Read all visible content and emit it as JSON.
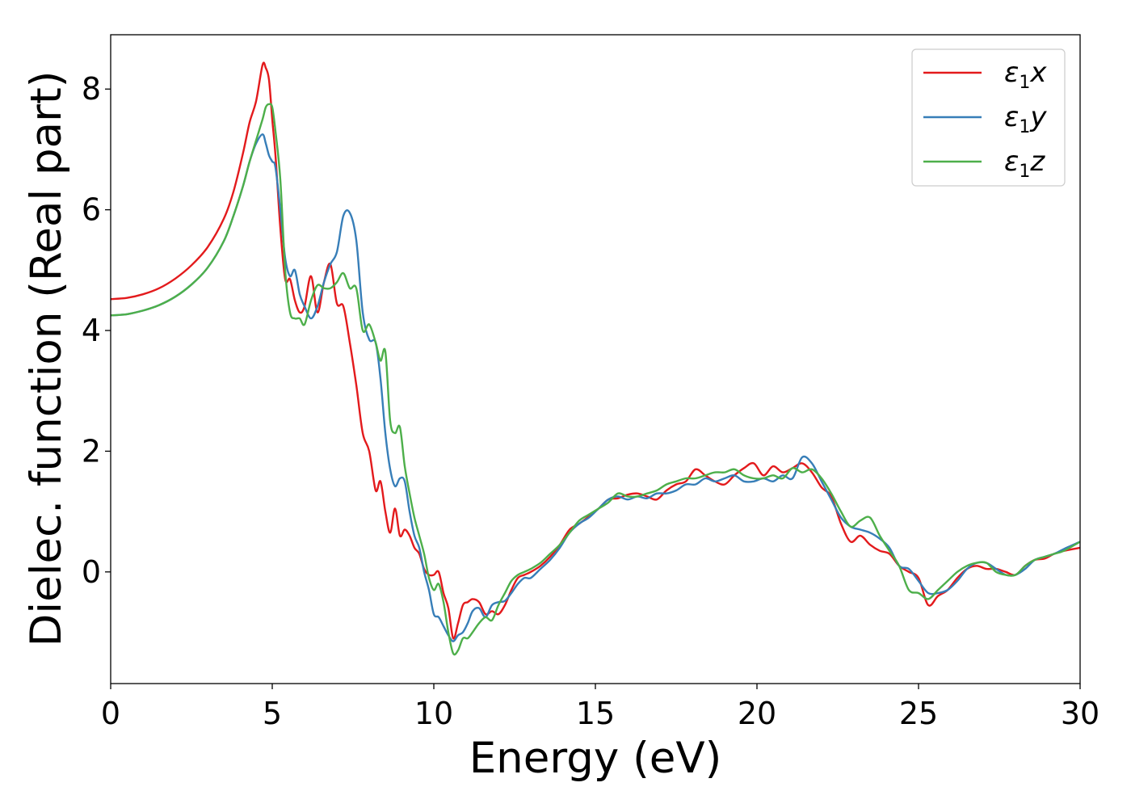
{
  "chart_data": {
    "type": "line",
    "xlabel": "Energy (eV)",
    "ylabel": "Dielec. function (Real part)",
    "xlim": [
      0,
      30
    ],
    "ylim": [
      -1.85,
      8.9
    ],
    "xticks": [
      0,
      5,
      10,
      15,
      20,
      25,
      30
    ],
    "yticks": [
      0,
      2,
      4,
      6,
      8
    ],
    "grid": false,
    "legend_position": "top-right",
    "series": [
      {
        "name": "ε1x",
        "legend": {
          "sym": "ε",
          "sub": "1",
          "axis": "x"
        },
        "color": "#e31a1c",
        "x": [
          0,
          0.5,
          1,
          1.5,
          2,
          2.5,
          3,
          3.5,
          3.8,
          4.1,
          4.3,
          4.5,
          4.7,
          4.8,
          4.9,
          5.0,
          5.1,
          5.25,
          5.4,
          5.55,
          5.7,
          5.85,
          6.0,
          6.2,
          6.4,
          6.6,
          6.8,
          7.0,
          7.2,
          7.4,
          7.6,
          7.8,
          8.0,
          8.2,
          8.35,
          8.5,
          8.65,
          8.8,
          8.95,
          9.1,
          9.25,
          9.4,
          9.55,
          9.7,
          9.85,
          10.0,
          10.15,
          10.3,
          10.45,
          10.6,
          10.75,
          10.9,
          11.05,
          11.2,
          11.4,
          11.6,
          11.8,
          12.0,
          12.2,
          12.4,
          12.6,
          12.8,
          13.0,
          13.3,
          13.6,
          13.9,
          14.2,
          14.5,
          14.8,
          15.1,
          15.4,
          15.7,
          16.0,
          16.3,
          16.6,
          16.9,
          17.2,
          17.5,
          17.8,
          18.1,
          18.4,
          18.7,
          19.0,
          19.3,
          19.6,
          19.9,
          20.2,
          20.5,
          20.8,
          21.1,
          21.4,
          21.7,
          22.0,
          22.3,
          22.6,
          22.9,
          23.2,
          23.5,
          23.8,
          24.1,
          24.4,
          24.7,
          25.0,
          25.3,
          25.6,
          25.9,
          26.2,
          26.5,
          26.8,
          27.1,
          27.4,
          27.7,
          28.0,
          28.3,
          28.6,
          28.9,
          29.2,
          29.5,
          30.0
        ],
        "values": [
          4.52,
          4.54,
          4.6,
          4.7,
          4.86,
          5.08,
          5.38,
          5.85,
          6.3,
          6.95,
          7.45,
          7.8,
          8.4,
          8.35,
          8.15,
          7.5,
          6.9,
          5.7,
          4.85,
          4.85,
          4.5,
          4.3,
          4.4,
          4.9,
          4.3,
          4.8,
          5.1,
          4.45,
          4.4,
          3.8,
          3.1,
          2.3,
          2.0,
          1.35,
          1.5,
          1.0,
          0.65,
          1.05,
          0.6,
          0.7,
          0.6,
          0.4,
          0.3,
          0.05,
          -0.05,
          -0.05,
          0.0,
          -0.35,
          -0.6,
          -1.1,
          -0.85,
          -0.55,
          -0.5,
          -0.45,
          -0.5,
          -0.7,
          -0.65,
          -0.7,
          -0.55,
          -0.3,
          -0.1,
          -0.05,
          0.0,
          0.1,
          0.25,
          0.45,
          0.7,
          0.8,
          0.92,
          1.05,
          1.2,
          1.22,
          1.28,
          1.3,
          1.25,
          1.2,
          1.35,
          1.45,
          1.5,
          1.7,
          1.6,
          1.5,
          1.45,
          1.6,
          1.72,
          1.8,
          1.6,
          1.75,
          1.65,
          1.72,
          1.8,
          1.65,
          1.4,
          1.25,
          0.8,
          0.5,
          0.6,
          0.45,
          0.35,
          0.3,
          0.1,
          0.0,
          -0.1,
          -0.55,
          -0.4,
          -0.3,
          -0.1,
          0.05,
          0.1,
          0.05,
          0.05,
          0.0,
          -0.05,
          0.1,
          0.2,
          0.22,
          0.3,
          0.35,
          0.4
        ]
      },
      {
        "name": "ε1y",
        "legend": {
          "sym": "ε",
          "sub": "1",
          "axis": "y"
        },
        "color": "#377eb8",
        "x": [
          0,
          0.5,
          1,
          1.5,
          2,
          2.5,
          3,
          3.5,
          3.8,
          4.1,
          4.3,
          4.5,
          4.7,
          4.8,
          4.9,
          5.0,
          5.1,
          5.25,
          5.4,
          5.55,
          5.7,
          5.85,
          6.0,
          6.2,
          6.4,
          6.6,
          6.8,
          7.0,
          7.2,
          7.4,
          7.6,
          7.8,
          8.0,
          8.2,
          8.35,
          8.5,
          8.65,
          8.8,
          8.95,
          9.1,
          9.25,
          9.4,
          9.55,
          9.7,
          9.85,
          10.0,
          10.15,
          10.3,
          10.45,
          10.6,
          10.75,
          10.9,
          11.05,
          11.2,
          11.4,
          11.6,
          11.8,
          12.0,
          12.2,
          12.4,
          12.6,
          12.8,
          13.0,
          13.3,
          13.6,
          13.9,
          14.2,
          14.5,
          14.8,
          15.1,
          15.4,
          15.7,
          16.0,
          16.3,
          16.6,
          16.9,
          17.2,
          17.5,
          17.8,
          18.1,
          18.4,
          18.7,
          19.0,
          19.3,
          19.6,
          19.9,
          20.2,
          20.5,
          20.8,
          21.1,
          21.4,
          21.7,
          22.0,
          22.3,
          22.6,
          22.9,
          23.2,
          23.5,
          23.8,
          24.1,
          24.4,
          24.7,
          25.0,
          25.3,
          25.6,
          25.9,
          26.2,
          26.5,
          26.8,
          27.1,
          27.4,
          27.7,
          28.0,
          28.3,
          28.6,
          28.9,
          29.2,
          29.5,
          30.0
        ],
        "values": [
          4.25,
          4.27,
          4.33,
          4.42,
          4.56,
          4.76,
          5.04,
          5.48,
          5.9,
          6.4,
          6.8,
          7.1,
          7.25,
          7.1,
          6.9,
          6.8,
          6.7,
          6.0,
          5.2,
          4.9,
          5.0,
          4.6,
          4.4,
          4.2,
          4.4,
          4.8,
          5.1,
          5.3,
          5.9,
          5.95,
          5.5,
          4.3,
          3.85,
          3.8,
          3.2,
          2.3,
          1.7,
          1.42,
          1.55,
          1.5,
          1.0,
          0.6,
          0.4,
          0.0,
          -0.3,
          -0.7,
          -0.75,
          -0.9,
          -1.05,
          -1.15,
          -1.05,
          -1.0,
          -0.85,
          -0.65,
          -0.6,
          -0.75,
          -0.55,
          -0.5,
          -0.48,
          -0.35,
          -0.2,
          -0.1,
          -0.1,
          0.05,
          0.2,
          0.4,
          0.65,
          0.8,
          0.9,
          1.05,
          1.2,
          1.25,
          1.2,
          1.25,
          1.22,
          1.3,
          1.3,
          1.35,
          1.45,
          1.45,
          1.55,
          1.5,
          1.55,
          1.6,
          1.5,
          1.5,
          1.55,
          1.5,
          1.6,
          1.55,
          1.9,
          1.8,
          1.5,
          1.2,
          0.9,
          0.75,
          0.7,
          0.65,
          0.55,
          0.4,
          0.1,
          0.05,
          -0.15,
          -0.35,
          -0.35,
          -0.3,
          -0.15,
          0.05,
          0.15,
          0.15,
          0.05,
          -0.05,
          -0.05,
          0.05,
          0.2,
          0.25,
          0.3,
          0.38,
          0.5
        ]
      },
      {
        "name": "ε1z",
        "legend": {
          "sym": "ε",
          "sub": "1",
          "axis": "z"
        },
        "color": "#4daf4a",
        "x": [
          0,
          0.5,
          1,
          1.5,
          2,
          2.5,
          3,
          3.5,
          3.8,
          4.1,
          4.3,
          4.5,
          4.7,
          4.8,
          4.9,
          5.0,
          5.1,
          5.25,
          5.4,
          5.55,
          5.7,
          5.85,
          6.0,
          6.2,
          6.4,
          6.6,
          6.8,
          7.0,
          7.2,
          7.4,
          7.6,
          7.8,
          8.0,
          8.2,
          8.35,
          8.5,
          8.65,
          8.8,
          8.95,
          9.1,
          9.25,
          9.4,
          9.55,
          9.7,
          9.85,
          10.0,
          10.15,
          10.3,
          10.45,
          10.6,
          10.75,
          10.9,
          11.05,
          11.2,
          11.4,
          11.6,
          11.8,
          12.0,
          12.2,
          12.4,
          12.6,
          12.8,
          13.0,
          13.3,
          13.6,
          13.9,
          14.2,
          14.5,
          14.8,
          15.1,
          15.4,
          15.7,
          16.0,
          16.3,
          16.6,
          16.9,
          17.2,
          17.5,
          17.8,
          18.1,
          18.4,
          18.7,
          19.0,
          19.3,
          19.6,
          19.9,
          20.2,
          20.5,
          20.8,
          21.1,
          21.4,
          21.7,
          22.0,
          22.3,
          22.6,
          22.9,
          23.2,
          23.5,
          23.8,
          24.1,
          24.4,
          24.7,
          25.0,
          25.3,
          25.6,
          25.9,
          26.2,
          26.5,
          26.8,
          27.1,
          27.4,
          27.7,
          28.0,
          28.3,
          28.6,
          28.9,
          29.2,
          29.5,
          30.0
        ],
        "values": [
          4.25,
          4.27,
          4.33,
          4.42,
          4.56,
          4.76,
          5.04,
          5.48,
          5.9,
          6.4,
          6.8,
          7.15,
          7.5,
          7.7,
          7.75,
          7.7,
          7.3,
          6.5,
          5.0,
          4.3,
          4.2,
          4.2,
          4.1,
          4.5,
          4.75,
          4.7,
          4.7,
          4.8,
          4.95,
          4.7,
          4.7,
          4.0,
          4.1,
          3.8,
          3.5,
          3.65,
          2.5,
          2.3,
          2.4,
          1.75,
          1.3,
          0.9,
          0.6,
          0.3,
          -0.1,
          -0.3,
          -0.2,
          -0.5,
          -1.0,
          -1.35,
          -1.3,
          -1.1,
          -1.1,
          -1.0,
          -0.85,
          -0.75,
          -0.8,
          -0.55,
          -0.35,
          -0.15,
          -0.05,
          0.0,
          0.05,
          0.15,
          0.3,
          0.45,
          0.65,
          0.85,
          0.95,
          1.05,
          1.15,
          1.3,
          1.25,
          1.25,
          1.3,
          1.35,
          1.45,
          1.5,
          1.55,
          1.55,
          1.6,
          1.65,
          1.65,
          1.7,
          1.6,
          1.55,
          1.55,
          1.6,
          1.55,
          1.72,
          1.65,
          1.7,
          1.55,
          1.3,
          1.0,
          0.75,
          0.85,
          0.9,
          0.6,
          0.35,
          0.1,
          -0.3,
          -0.35,
          -0.45,
          -0.3,
          -0.15,
          0.0,
          0.1,
          0.15,
          0.15,
          0.0,
          -0.05,
          -0.05,
          0.1,
          0.2,
          0.25,
          0.3,
          0.35,
          0.5
        ]
      }
    ]
  }
}
